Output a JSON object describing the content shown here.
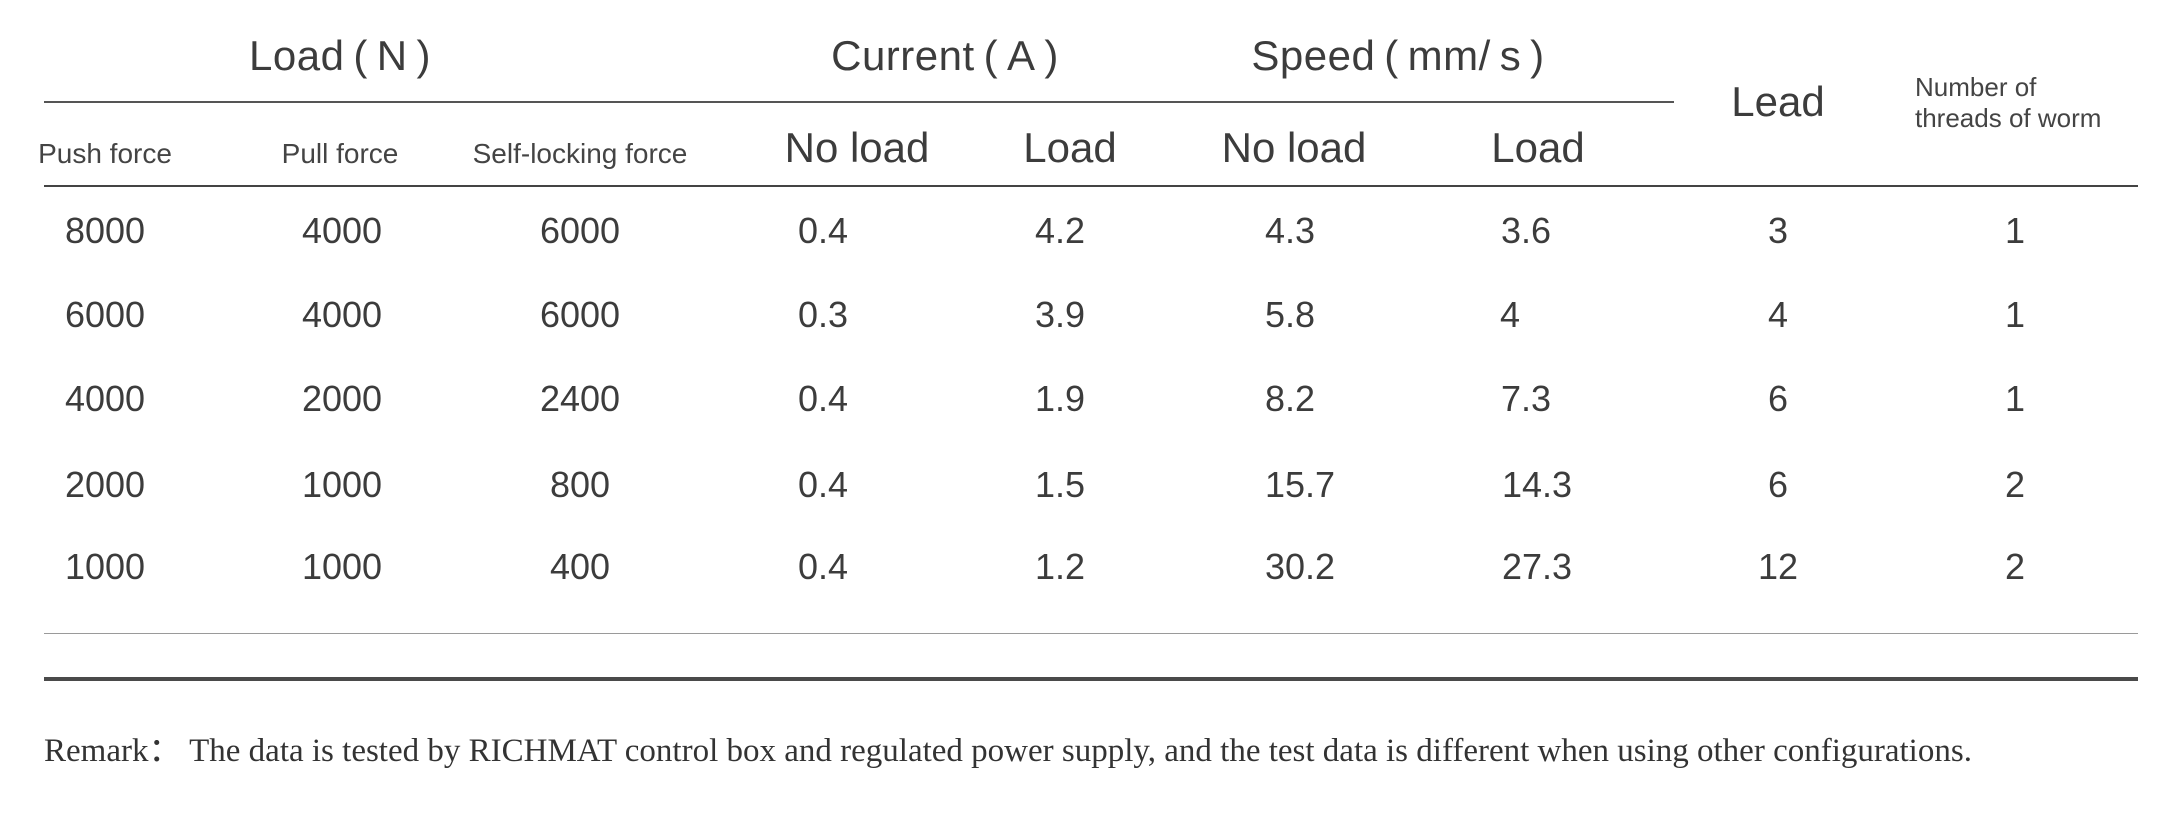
{
  "table": {
    "group_headers": {
      "load": "Load ( N )",
      "current": "Current ( A )",
      "speed": "Speed ( mm/ s )",
      "lead": "Lead",
      "threads_line1": "Number of",
      "threads_line2": "threads of worm"
    },
    "sub_headers": {
      "push_force": "Push force",
      "pull_force": "Pull force",
      "self_locking_force": "Self-locking force",
      "current_no_load": "No load",
      "current_load": "Load",
      "speed_no_load": "No load",
      "speed_load": "Load"
    },
    "rows": [
      [
        "8000",
        "4000",
        "6000",
        "0.4",
        "4.2",
        "4.3",
        "3.6",
        "3",
        "1"
      ],
      [
        "6000",
        "4000",
        "6000",
        "0.3",
        "3.9",
        "5.8",
        "4",
        "4",
        "1"
      ],
      [
        "4000",
        "2000",
        "2400",
        "0.4",
        "1.9",
        "8.2",
        "7.3",
        "6",
        "1"
      ],
      [
        "2000",
        "1000",
        "800",
        "0.4",
        "1.5",
        "15.7",
        "14.3",
        "6",
        "2"
      ],
      [
        "1000",
        "1000",
        "400",
        "0.4",
        "1.2",
        "30.2",
        "27.3",
        "12",
        "2"
      ]
    ]
  },
  "remark": "Remark： The data is tested by RICHMAT control box and regulated power supply, and the test data is different when using other configurations."
}
